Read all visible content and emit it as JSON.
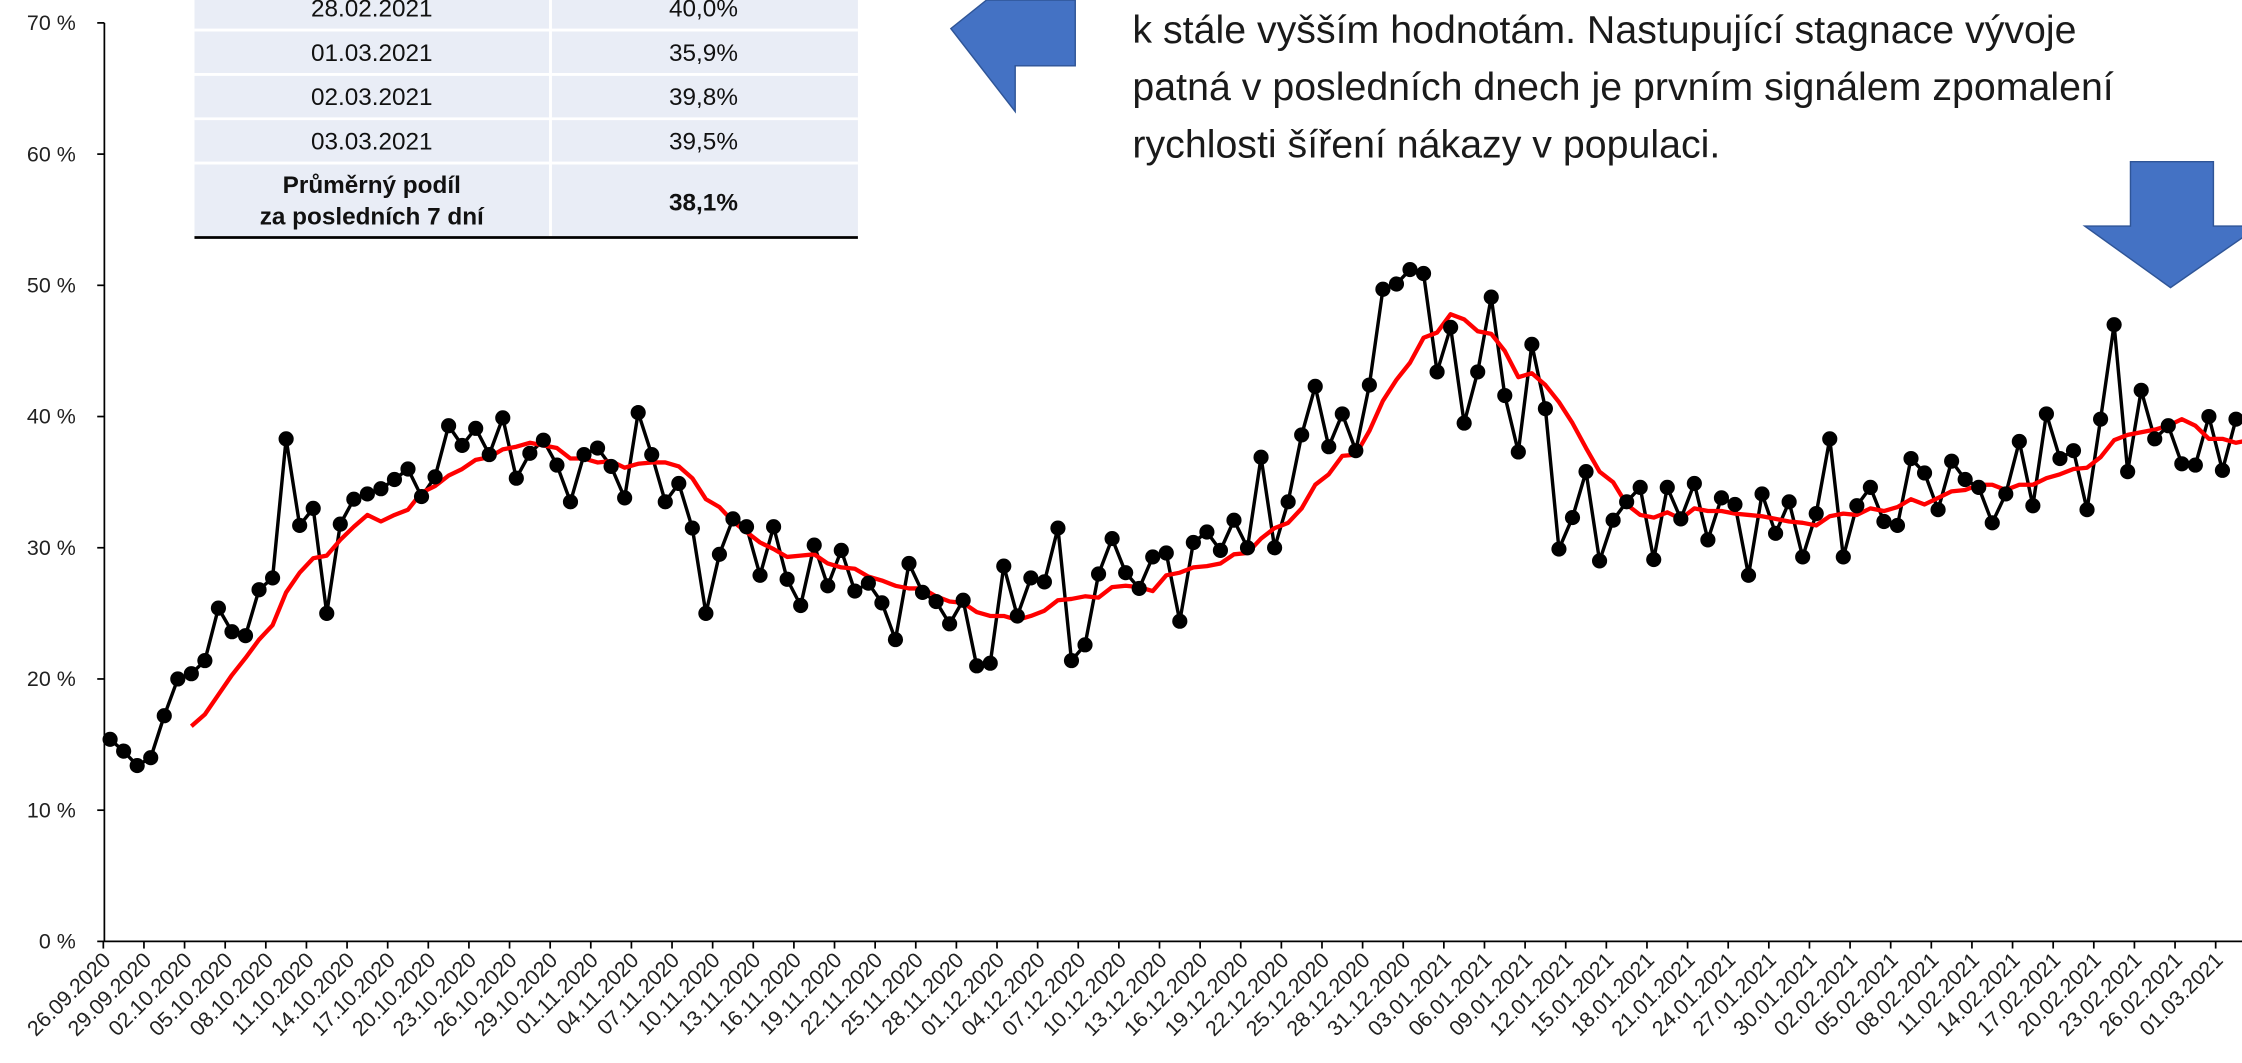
{
  "chart_data": {
    "type": "line",
    "categories": [
      "26.09.2020",
      null,
      null,
      "29.09.2020",
      null,
      null,
      "02.10.2020",
      null,
      null,
      "05.10.2020",
      null,
      null,
      "08.10.2020",
      null,
      null,
      "11.10.2020",
      null,
      null,
      "14.10.2020",
      null,
      null,
      "17.10.2020",
      null,
      null,
      "20.10.2020",
      null,
      null,
      "23.10.2020",
      null,
      null,
      "26.10.2020",
      null,
      null,
      "29.10.2020",
      null,
      null,
      "01.11.2020",
      null,
      null,
      "04.11.2020",
      null,
      null,
      "07.11.2020",
      null,
      null,
      "10.11.2020",
      null,
      null,
      "13.11.2020",
      null,
      null,
      "16.11.2020",
      null,
      null,
      "19.11.2020",
      null,
      null,
      "22.11.2020",
      null,
      null,
      "25.11.2020",
      null,
      null,
      "28.11.2020",
      null,
      null,
      "01.12.2020",
      null,
      null,
      "04.12.2020",
      null,
      null,
      "07.12.2020",
      null,
      null,
      "10.12.2020",
      null,
      null,
      "13.12.2020",
      null,
      null,
      "16.12.2020",
      null,
      null,
      "19.12.2020",
      null,
      null,
      "22.12.2020",
      null,
      null,
      "25.12.2020",
      null,
      null,
      "28.12.2020",
      null,
      null,
      "31.12.2020",
      null,
      null,
      "03.01.2021",
      null,
      null,
      "06.01.2021",
      null,
      null,
      "09.01.2021",
      null,
      null,
      "12.01.2021",
      null,
      null,
      "15.01.2021",
      null,
      null,
      "18.01.2021",
      null,
      null,
      "21.01.2021",
      null,
      null,
      "24.01.2021",
      null,
      null,
      "27.01.2021",
      null,
      null,
      "30.01.2021",
      null,
      null,
      "02.02.2021",
      null,
      null,
      "05.02.2021",
      null,
      null,
      "08.02.2021",
      null,
      null,
      "11.02.2021",
      null,
      null,
      "14.02.2021",
      null,
      null,
      "17.02.2021",
      null,
      null,
      "20.02.2021",
      null,
      null,
      "23.02.2021",
      null,
      null,
      "26.02.2021",
      null,
      null,
      "01.03.2021",
      null,
      null
    ],
    "series": [
      {
        "color": "#000000",
        "marker": true,
        "values": [
          15.4,
          14.5,
          13.4,
          14.0,
          17.2,
          20.0,
          20.4,
          21.4,
          25.4,
          23.6,
          23.3,
          26.8,
          27.7,
          38.3,
          31.7,
          33.0,
          25.0,
          31.8,
          33.7,
          34.1,
          34.5,
          35.2,
          36.0,
          33.9,
          35.4,
          39.3,
          37.8,
          39.1,
          37.1,
          39.9,
          35.3,
          37.2,
          38.2,
          36.3,
          33.5,
          37.1,
          37.6,
          36.2,
          33.8,
          40.3,
          37.1,
          33.5,
          34.9,
          31.5,
          25.0,
          29.5,
          32.2,
          31.6,
          27.9,
          31.6,
          27.6,
          25.6,
          30.2,
          27.1,
          29.8,
          26.7,
          27.3,
          25.8,
          23.0,
          28.8,
          26.6,
          25.9,
          24.2,
          26.0,
          21.0,
          21.2,
          28.6,
          24.8,
          27.7,
          27.4,
          31.5,
          21.4,
          22.6,
          28.0,
          30.7,
          28.1,
          26.9,
          29.3,
          29.6,
          24.4,
          30.4,
          31.2,
          29.8,
          32.1,
          30.0,
          36.9,
          30.0,
          33.5,
          38.6,
          42.3,
          37.7,
          40.2,
          37.4,
          42.4,
          49.7,
          50.1,
          51.2,
          50.9,
          43.4,
          46.8,
          39.5,
          43.4,
          49.1,
          41.6,
          37.3,
          45.5,
          40.6,
          29.9,
          32.3,
          35.8,
          29.0,
          32.1,
          33.5,
          34.6,
          29.1,
          34.6,
          32.2,
          34.9,
          30.6,
          33.8,
          33.3,
          27.9,
          34.1,
          31.1,
          33.5,
          29.3,
          32.6,
          38.3,
          29.3,
          33.2,
          34.6,
          32.0,
          31.7,
          36.8,
          35.7,
          32.9,
          36.6,
          35.2,
          34.6,
          31.9,
          34.1,
          38.1,
          33.2,
          40.2,
          36.8,
          37.4,
          32.9,
          39.8,
          47.0,
          35.8,
          42.0,
          38.3,
          39.3,
          36.4,
          36.3,
          40.0,
          35.9,
          39.8,
          39.5
        ]
      },
      {
        "color": "#ff0000",
        "marker": false,
        "values": [
          null,
          null,
          null,
          null,
          null,
          null,
          16.4,
          17.3,
          18.8,
          20.3,
          21.6,
          23.0,
          24.1,
          26.6,
          28.1,
          29.2,
          29.4,
          30.6,
          31.6,
          32.5,
          32.0,
          32.5,
          32.9,
          34.2,
          34.7,
          35.5,
          36.0,
          36.7,
          36.9,
          37.5,
          37.7,
          38.0,
          37.8,
          37.6,
          36.8,
          36.8,
          36.5,
          36.6,
          36.1,
          36.4,
          36.5,
          36.5,
          36.2,
          35.3,
          33.7,
          33.1,
          32.0,
          31.2,
          30.4,
          29.9,
          29.3,
          29.4,
          29.5,
          28.8,
          28.5,
          28.4,
          27.8,
          27.5,
          27.1,
          26.9,
          26.9,
          26.3,
          25.9,
          25.8,
          25.1,
          24.8,
          24.8,
          24.5,
          24.8,
          25.2,
          26.0,
          26.1,
          26.3,
          26.2,
          27.0,
          27.1,
          27.0,
          26.7,
          27.9,
          28.1,
          28.5,
          28.6,
          28.8,
          29.5,
          29.6,
          30.7,
          31.5,
          31.9,
          33.0,
          34.8,
          35.6,
          37.0,
          37.1,
          38.9,
          41.2,
          42.8,
          44.1,
          46.0,
          46.4,
          47.8,
          47.4,
          46.5,
          46.3,
          45.0,
          43.0,
          43.3,
          42.4,
          41.1,
          39.5,
          37.6,
          35.8,
          35.0,
          33.3,
          32.5,
          32.3,
          32.7,
          32.2,
          33.0,
          32.8,
          32.8,
          32.6,
          32.5,
          32.4,
          32.2,
          32.0,
          31.9,
          31.7,
          32.4,
          32.6,
          32.5,
          33.0,
          32.8,
          33.1,
          33.7,
          33.3,
          33.8,
          34.3,
          34.4,
          34.8,
          34.8,
          34.4,
          34.8,
          34.8,
          35.3,
          35.6,
          36.0,
          36.1,
          36.9,
          38.2,
          38.6,
          38.8,
          39.0,
          39.3,
          39.8,
          39.3,
          38.3,
          38.3,
          38.0,
          38.2
        ]
      }
    ],
    "ylim": [
      0,
      70
    ],
    "yticks": [
      {
        "value": 0,
        "label": "0 %"
      },
      {
        "value": 10,
        "label": "10 %"
      },
      {
        "value": 20,
        "label": "20 %"
      },
      {
        "value": 30,
        "label": "30 %"
      },
      {
        "value": 40,
        "label": "40 %"
      },
      {
        "value": 50,
        "label": "50 %"
      },
      {
        "value": 60,
        "label": "60 %"
      },
      {
        "value": 70,
        "label": "70 %"
      }
    ],
    "grid": false
  },
  "table": {
    "rows": [
      [
        "28.02.2021",
        "40,0%"
      ],
      [
        "01.03.2021",
        "35,9%"
      ],
      [
        "02.03.2021",
        "39,8%"
      ],
      [
        "03.03.2021",
        "39,5%"
      ]
    ],
    "footer": [
      [
        "Průměrný podíl",
        "za posledních 7 dní"
      ],
      "38,1%"
    ]
  },
  "note": {
    "lines": [
      "k stále vyšším hodnotám. Nastupující stagnace vývoje",
      "patná v posledních dnech je prvním signálem zpomalení",
      "rychlosti šíření nákazy v populaci."
    ]
  }
}
